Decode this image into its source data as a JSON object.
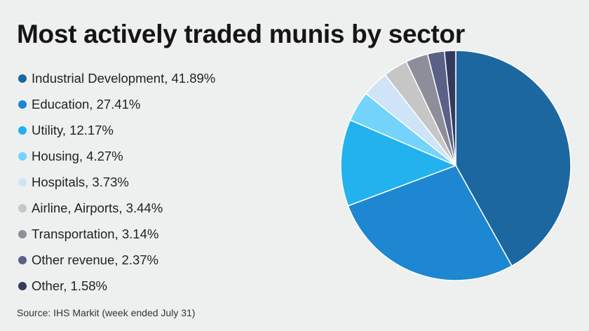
{
  "title": "Most actively traded munis by sector",
  "source": "Source: IHS Markit (week ended July 31)",
  "chart_data": {
    "type": "pie",
    "title": "Most actively traded munis by sector",
    "legend_position": "left",
    "slices": [
      {
        "label": "Industrial Development",
        "value": 41.89,
        "display": "Industrial Development, 41.89%",
        "color": "#1c679f"
      },
      {
        "label": "Education",
        "value": 27.41,
        "display": "Education, 27.41%",
        "color": "#1d87d1"
      },
      {
        "label": "Utility",
        "value": 12.17,
        "display": "Utility, 12.17%",
        "color": "#22b2ee"
      },
      {
        "label": "Housing",
        "value": 4.27,
        "display": "Housing, 4.27%",
        "color": "#73d3fb"
      },
      {
        "label": "Hospitals",
        "value": 3.73,
        "display": "Hospitals, 3.73%",
        "color": "#cfe4f7"
      },
      {
        "label": "Airline, Airports",
        "value": 3.44,
        "display": "Airline, Airports, 3.44%",
        "color": "#c6c6c6"
      },
      {
        "label": "Transportation",
        "value": 3.14,
        "display": "Transportation, 3.14%",
        "color": "#8e8e9b"
      },
      {
        "label": "Other revenue",
        "value": 2.37,
        "display": "Other revenue, 2.37%",
        "color": "#5b6186"
      },
      {
        "label": "Other",
        "value": 1.58,
        "display": "Other, 1.58%",
        "color": "#343a5e"
      }
    ]
  }
}
